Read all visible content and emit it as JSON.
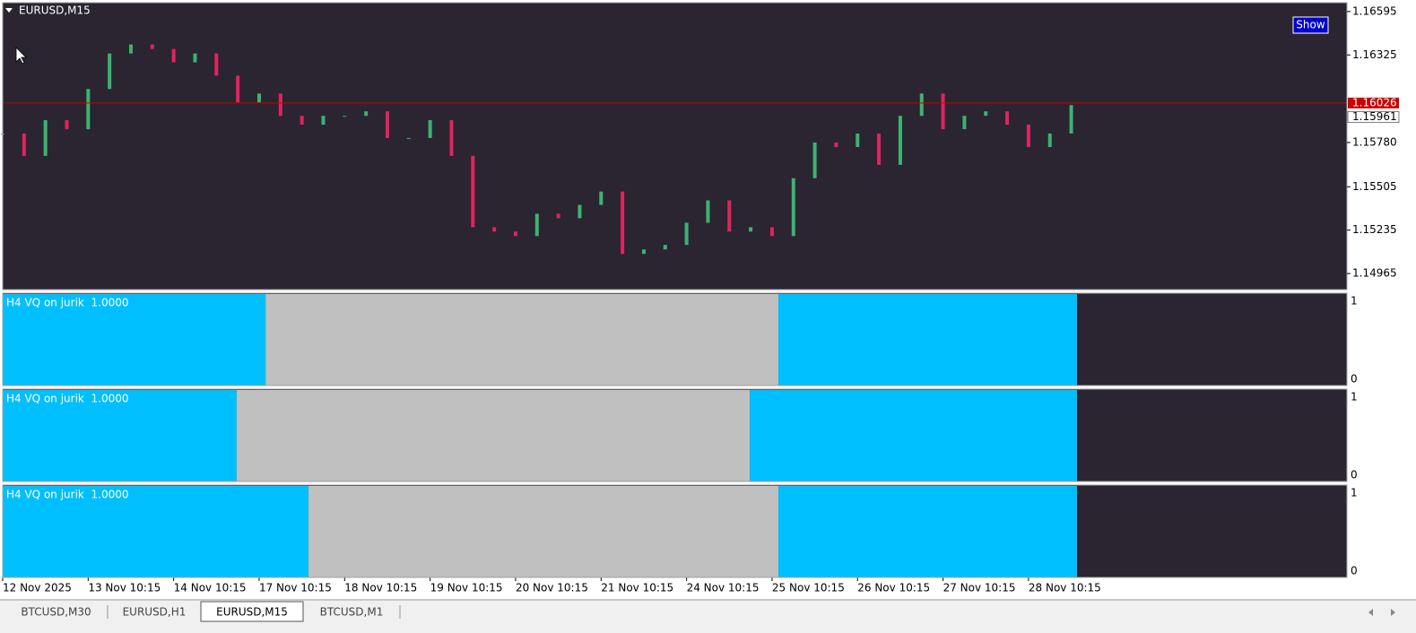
{
  "chart_data": [
    {
      "type": "candlestick",
      "title": "EURUSD,M15",
      "values": [
        1.15836,
        1.15697,
        1.15919,
        1.15863,
        1.16113,
        1.16334,
        1.1639,
        1.16362,
        1.16279,
        1.16334,
        1.16196,
        1.1603,
        1.16085,
        1.15946,
        1.15891,
        1.15946,
        1.15946,
        1.15974,
        1.15808,
        1.15808,
        1.15919,
        1.15697,
        1.15253,
        1.15226,
        1.15198,
        1.15337,
        1.15309,
        1.15392,
        1.15475,
        1.15087,
        1.15115,
        1.15143,
        1.15281,
        1.1542,
        1.15226,
        1.15253,
        1.15198,
        1.15558,
        1.1578,
        1.15752,
        1.15836,
        1.15641,
        1.15946,
        1.16085,
        1.15863,
        1.15946,
        1.15974,
        1.15891,
        1.15752,
        1.15836,
        1.16013
      ],
      "xlim": [
        0,
        62.9
      ],
      "xticks": [
        {
          "value": 0,
          "label": "12 Nov 2025"
        },
        {
          "value": 4,
          "label": "13 Nov 10:15"
        },
        {
          "value": 8,
          "label": "14 Nov 10:15"
        },
        {
          "value": 12,
          "label": "17 Nov 10:15"
        },
        {
          "value": 16,
          "label": "18 Nov 10:15"
        },
        {
          "value": 20,
          "label": "19 Nov 10:15"
        },
        {
          "value": 24,
          "label": "20 Nov 10:15"
        },
        {
          "value": 28,
          "label": "21 Nov 10:15"
        },
        {
          "value": 32,
          "label": "24 Nov 10:15"
        },
        {
          "value": 36,
          "label": "25 Nov 10:15"
        },
        {
          "value": 40,
          "label": "26 Nov 10:15"
        },
        {
          "value": 44,
          "label": "27 Nov 10:15"
        },
        {
          "value": 48,
          "label": "28 Nov 10:15"
        }
      ],
      "ylim": [
        1.14865,
        1.1665
      ],
      "yticks": [
        1.16595,
        1.16325,
        {
          "value": 1.1578,
          "label": "1.15780"
        },
        1.15505,
        1.15235,
        1.14965
      ],
      "up_color": "#3cb371",
      "down_color": "#e0245e",
      "price_line": 1.16026,
      "price_line_color": "#cc0000",
      "bid": 1.15961
    },
    {
      "type": "band",
      "label": "H4 VQ on jurik  1.0000",
      "xlim": [
        0,
        62.9
      ],
      "ylim": [
        -0.08,
        1.103
      ],
      "yticks": [
        0,
        1
      ],
      "bands": [
        {
          "from": 0,
          "to": 12.3,
          "color": "#00bfff"
        },
        {
          "from": 12.3,
          "to": 36.3,
          "color": "#c0c0c0"
        },
        {
          "from": 36.3,
          "to": 50.27,
          "color": "#00bfff"
        }
      ]
    },
    {
      "type": "band",
      "label": "H4 VQ on jurik  1.0000",
      "xlim": [
        0,
        62.9
      ],
      "ylim": [
        -0.08,
        1.103
      ],
      "yticks": [
        0,
        1
      ],
      "bands": [
        {
          "from": 0,
          "to": 10.95,
          "color": "#00bfff"
        },
        {
          "from": 10.95,
          "to": 34.96,
          "color": "#c0c0c0"
        },
        {
          "from": 34.96,
          "to": 50.27,
          "color": "#00bfff"
        }
      ]
    },
    {
      "type": "band",
      "label": "H4 VQ on jurik  1.0000",
      "xlim": [
        0,
        62.9
      ],
      "ylim": [
        -0.08,
        1.103
      ],
      "yticks": [
        0,
        1
      ],
      "bands": [
        {
          "from": 0,
          "to": 14.31,
          "color": "#00bfff"
        },
        {
          "from": 14.31,
          "to": 36.3,
          "color": "#c0c0c0"
        },
        {
          "from": 36.3,
          "to": 50.27,
          "color": "#00bfff"
        }
      ]
    }
  ],
  "ui": {
    "show_button": "Show",
    "tabs": [
      "BTCUSD,M30",
      "EURUSD,H1",
      "EURUSD,M15",
      "BTCUSD,M1"
    ],
    "active_tab": 2
  }
}
